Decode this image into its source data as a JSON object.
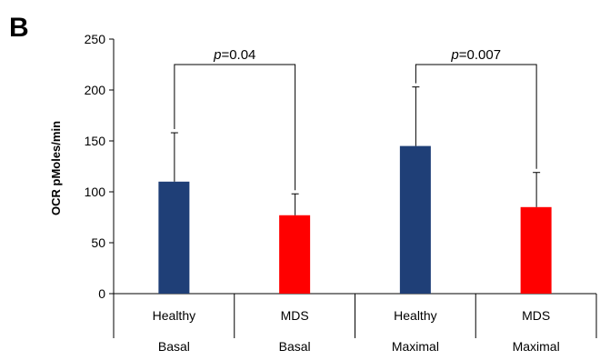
{
  "panel_label": "B",
  "chart_data": {
    "type": "bar",
    "ylabel": "OCR pMoles/min",
    "xlabel": "",
    "ylim": [
      0,
      250
    ],
    "yticks": [
      0,
      50,
      100,
      150,
      200,
      250
    ],
    "grid": false,
    "legend": "none",
    "categories": [
      {
        "top": "Healthy",
        "bottom": "Basal"
      },
      {
        "top": "MDS",
        "bottom": "Basal"
      },
      {
        "top": "Healthy",
        "bottom": "Maximal"
      },
      {
        "top": "MDS",
        "bottom": "Maximal"
      }
    ],
    "values": [
      110,
      77,
      145,
      85
    ],
    "error_upper": [
      158,
      98,
      203,
      119
    ],
    "colors": [
      "#1f3f77",
      "#ff0000",
      "#1f3f77",
      "#ff0000"
    ],
    "annotations": [
      {
        "p_symbol": "p",
        "p_value": "=0.04",
        "from": 0,
        "to": 1,
        "bracket_y": 225
      },
      {
        "p_symbol": "p",
        "p_value": "=0.007",
        "from": 2,
        "to": 3,
        "bracket_y": 225
      }
    ]
  }
}
